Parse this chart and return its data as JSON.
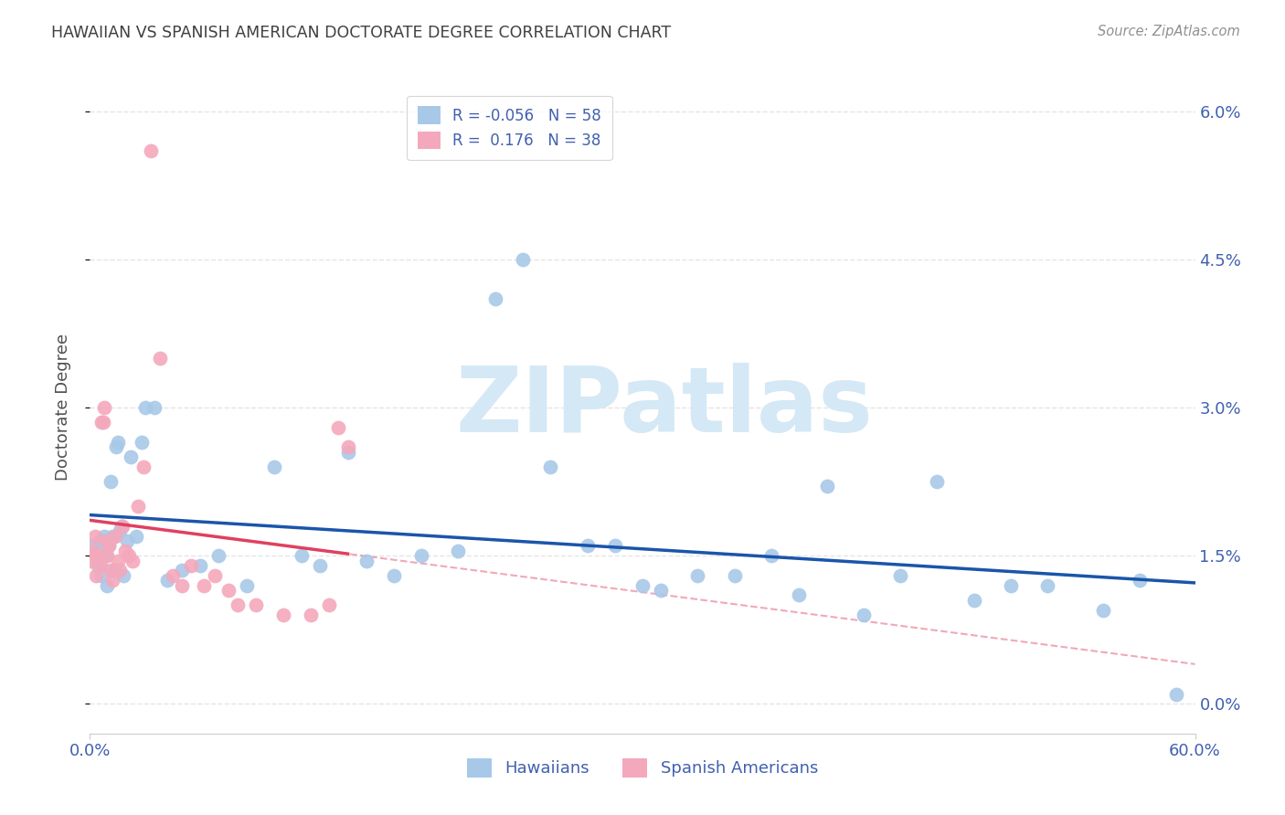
{
  "title": "HAWAIIAN VS SPANISH AMERICAN DOCTORATE DEGREE CORRELATION CHART",
  "source": "Source: ZipAtlas.com",
  "ylabel": "Doctorate Degree",
  "ytick_values": [
    0.0,
    1.5,
    3.0,
    4.5,
    6.0
  ],
  "xlim": [
    0.0,
    60.0
  ],
  "ylim": [
    -0.3,
    6.3
  ],
  "legend_hawaiian": "Hawaiians",
  "legend_spanish": "Spanish Americans",
  "R_hawaiian": -0.056,
  "N_hawaiian": 58,
  "R_spanish": 0.176,
  "N_spanish": 38,
  "color_hawaiian": "#a8c8e8",
  "color_spanish": "#f4a8bc",
  "line_color_hawaiian": "#1a55aa",
  "line_color_spanish": "#e04060",
  "watermark_color": "#d5e8f5",
  "grid_color": "#e5e5e5",
  "title_color": "#404040",
  "source_color": "#909090",
  "axis_tick_color": "#4060b0",
  "hawaiian_x": [
    0.2,
    0.35,
    0.45,
    0.55,
    0.6,
    0.7,
    0.75,
    0.85,
    0.9,
    1.0,
    1.1,
    1.2,
    1.3,
    1.4,
    1.5,
    1.6,
    1.7,
    1.8,
    2.0,
    2.2,
    2.5,
    2.8,
    3.0,
    3.5,
    4.2,
    5.0,
    6.0,
    7.0,
    8.5,
    10.0,
    11.5,
    12.5,
    14.0,
    15.0,
    16.5,
    18.0,
    20.0,
    22.0,
    23.5,
    25.0,
    27.0,
    28.5,
    30.0,
    31.0,
    33.0,
    35.0,
    37.0,
    38.5,
    40.0,
    42.0,
    44.0,
    46.0,
    48.0,
    50.0,
    52.0,
    55.0,
    57.0,
    59.0
  ],
  "hawaiian_y": [
    1.6,
    1.5,
    1.4,
    1.65,
    1.3,
    1.55,
    1.7,
    1.5,
    1.2,
    1.6,
    2.25,
    1.7,
    1.35,
    2.6,
    2.65,
    1.75,
    1.8,
    1.3,
    1.65,
    2.5,
    1.7,
    2.65,
    3.0,
    3.0,
    1.25,
    1.35,
    1.4,
    1.5,
    1.2,
    2.4,
    1.5,
    1.4,
    2.55,
    1.45,
    1.3,
    1.5,
    1.55,
    4.1,
    4.5,
    2.4,
    1.6,
    1.6,
    1.2,
    1.15,
    1.3,
    1.3,
    1.5,
    1.1,
    2.2,
    0.9,
    1.3,
    2.25,
    1.05,
    1.2,
    1.2,
    0.95,
    1.25,
    0.1
  ],
  "spanish_x": [
    0.1,
    0.2,
    0.3,
    0.35,
    0.45,
    0.55,
    0.6,
    0.7,
    0.75,
    0.85,
    0.9,
    1.0,
    1.1,
    1.2,
    1.35,
    1.5,
    1.6,
    1.75,
    1.9,
    2.1,
    2.3,
    2.6,
    2.9,
    3.3,
    3.8,
    4.5,
    5.0,
    5.5,
    6.2,
    6.8,
    7.5,
    8.0,
    9.0,
    10.5,
    12.0,
    13.0,
    13.5,
    14.0
  ],
  "spanish_y": [
    1.45,
    1.55,
    1.7,
    1.3,
    1.5,
    1.4,
    2.85,
    2.85,
    3.0,
    1.65,
    1.5,
    1.6,
    1.35,
    1.25,
    1.7,
    1.45,
    1.35,
    1.8,
    1.55,
    1.5,
    1.45,
    2.0,
    2.4,
    5.6,
    3.5,
    1.3,
    1.2,
    1.4,
    1.2,
    1.3,
    1.15,
    1.0,
    1.0,
    0.9,
    0.9,
    1.0,
    2.8,
    2.6
  ]
}
